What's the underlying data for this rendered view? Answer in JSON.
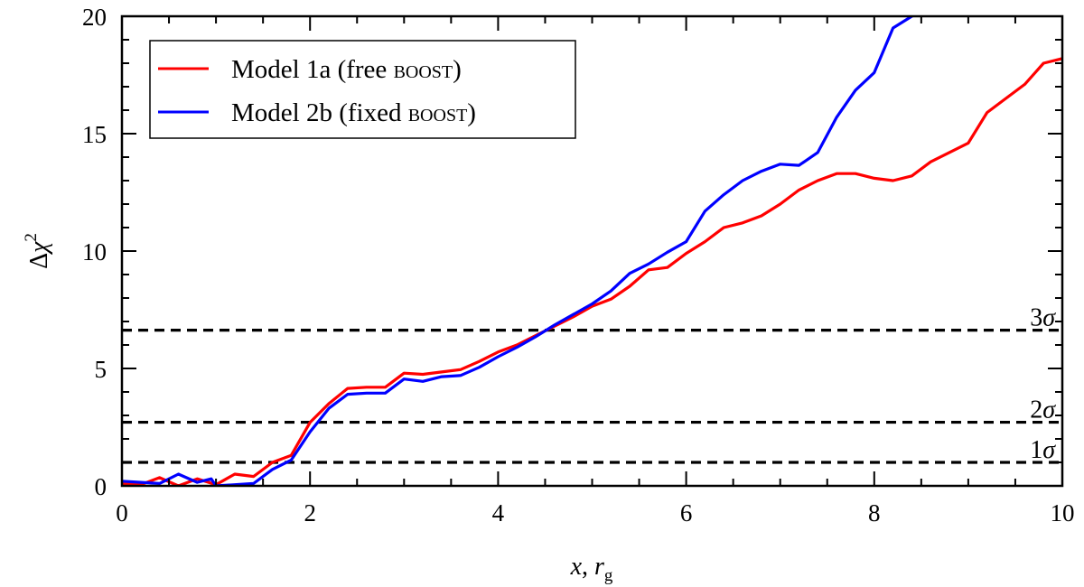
{
  "chart_data": {
    "type": "line",
    "xlim": [
      0,
      10
    ],
    "ylim": [
      0,
      20
    ],
    "x_ticks": [
      "0",
      "2",
      "4",
      "6",
      "8",
      "10"
    ],
    "y_ticks": [
      "0",
      "5",
      "10",
      "15",
      "20"
    ],
    "xlabel": {
      "main": "x",
      "sep": ", ",
      "sym": "r",
      "sub": "g"
    },
    "ylabel": {
      "delta": "Δ",
      "chi": "χ",
      "sup": "2"
    },
    "legend_position": "top-left",
    "series": [
      {
        "name": "Model 1a (free BOOST)",
        "color": "#ff0000",
        "x": [
          0,
          0.2,
          0.4,
          0.6,
          0.8,
          1.0,
          1.2,
          1.4,
          1.6,
          1.8,
          2.0,
          2.2,
          2.4,
          2.6,
          2.8,
          3.0,
          3.2,
          3.4,
          3.6,
          3.8,
          4.0,
          4.2,
          4.4,
          4.6,
          4.8,
          5.0,
          5.2,
          5.4,
          5.6,
          5.8,
          6.0,
          6.2,
          6.4,
          6.6,
          6.8,
          7.0,
          7.2,
          7.4,
          7.6,
          7.8,
          8.0,
          8.2,
          8.4,
          8.6,
          8.8,
          9.0,
          9.2,
          9.4,
          9.6,
          9.8,
          10.0
        ],
        "y": [
          0.1,
          0.05,
          0.35,
          0.0,
          0.3,
          0.05,
          0.5,
          0.4,
          1.0,
          1.3,
          2.7,
          3.5,
          4.15,
          4.2,
          4.2,
          4.8,
          4.75,
          4.85,
          4.95,
          5.3,
          5.7,
          6.0,
          6.4,
          6.8,
          7.2,
          7.65,
          7.95,
          8.5,
          9.2,
          9.3,
          9.9,
          10.4,
          11.0,
          11.2,
          11.5,
          12.0,
          12.6,
          13.0,
          13.3,
          13.3,
          13.1,
          13.0,
          13.2,
          13.8,
          14.2,
          14.6,
          15.9,
          16.5,
          17.1,
          18.0,
          18.2
        ]
      },
      {
        "name": "Model 2b (fixed BOOST)",
        "color": "#0000ff",
        "x": [
          0,
          0.2,
          0.4,
          0.6,
          0.8,
          0.95,
          1.0,
          1.2,
          1.4,
          1.6,
          1.8,
          2.0,
          2.2,
          2.4,
          2.6,
          2.8,
          3.0,
          3.2,
          3.4,
          3.6,
          3.8,
          4.0,
          4.2,
          4.4,
          4.6,
          4.8,
          5.0,
          5.2,
          5.4,
          5.6,
          5.8,
          6.0,
          6.2,
          6.4,
          6.6,
          6.8,
          7.0,
          7.2,
          7.4,
          7.6,
          7.8,
          8.0,
          8.2,
          8.4,
          8.6
        ],
        "y": [
          0.2,
          0.15,
          0.1,
          0.5,
          0.15,
          0.3,
          0.0,
          0.05,
          0.1,
          0.7,
          1.1,
          2.3,
          3.3,
          3.9,
          3.95,
          3.95,
          4.55,
          4.45,
          4.65,
          4.7,
          5.05,
          5.5,
          5.9,
          6.35,
          6.85,
          7.3,
          7.75,
          8.3,
          9.05,
          9.45,
          9.95,
          10.4,
          11.7,
          12.4,
          13.0,
          13.4,
          13.7,
          13.65,
          14.2,
          15.7,
          16.85,
          17.6,
          19.5,
          20.0,
          20.5
        ]
      }
    ],
    "hlines": [
      {
        "value": 6.63,
        "label": "3σ"
      },
      {
        "value": 2.71,
        "label": "2σ"
      },
      {
        "value": 1.0,
        "label": "1σ"
      }
    ]
  },
  "legend": {
    "items": [
      {
        "prefix": "Model 1a (free ",
        "smallcaps": "boost",
        "suffix": ")",
        "color": "#ff0000"
      },
      {
        "prefix": "Model 2b (fixed ",
        "smallcaps": "boost",
        "suffix": ")",
        "color": "#0000ff"
      }
    ]
  }
}
